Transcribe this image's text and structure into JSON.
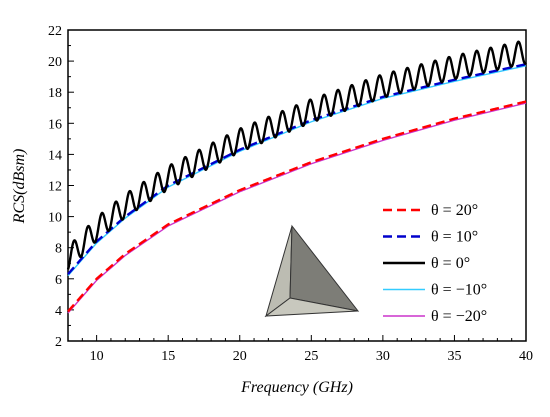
{
  "chart_data": {
    "type": "line",
    "xlabel": "Frequency (GHz)",
    "ylabel": "RCS(dBsm)",
    "xlim": [
      8,
      40
    ],
    "ylim": [
      2,
      22
    ],
    "xticks": [
      10,
      15,
      20,
      25,
      30,
      35,
      40
    ],
    "yticks": [
      2,
      4,
      6,
      8,
      10,
      12,
      14,
      16,
      18,
      20,
      22
    ],
    "legend_position": "right",
    "series": [
      {
        "name": "θ = 20°",
        "color": "#ff0000",
        "dash": "dashed",
        "x": [
          8,
          10,
          12,
          15,
          20,
          25,
          30,
          35,
          40
        ],
        "y": [
          3.9,
          6.0,
          7.6,
          9.5,
          11.7,
          13.5,
          15.0,
          16.3,
          17.4
        ]
      },
      {
        "name": "θ = 10°",
        "color": "#0000cc",
        "dash": "dashed",
        "x": [
          8,
          10,
          12,
          15,
          20,
          25,
          30,
          35,
          40
        ],
        "y": [
          6.3,
          8.4,
          10.0,
          12.0,
          14.3,
          16.2,
          17.7,
          18.8,
          19.8
        ]
      },
      {
        "name": "θ = 0°",
        "color": "#000000",
        "dash": "solid",
        "oscillating": true,
        "x": [
          8,
          10,
          12,
          15,
          20,
          25,
          30,
          35,
          40
        ],
        "y": [
          7.3,
          9.2,
          10.7,
          12.5,
          14.9,
          16.8,
          18.4,
          19.6,
          20.6
        ]
      },
      {
        "name": "θ = −10°",
        "color": "#33ccff",
        "dash": "solid",
        "x": [
          8,
          10,
          12,
          15,
          20,
          25,
          30,
          35,
          40
        ],
        "y": [
          6.2,
          8.3,
          9.9,
          11.9,
          14.2,
          16.1,
          17.6,
          18.7,
          19.7
        ]
      },
      {
        "name": "θ = −20°",
        "color": "#cc33cc",
        "dash": "solid",
        "x": [
          8,
          10,
          12,
          15,
          20,
          25,
          30,
          35,
          40
        ],
        "y": [
          3.8,
          5.9,
          7.5,
          9.4,
          11.6,
          13.4,
          14.9,
          16.2,
          17.3
        ]
      }
    ],
    "inset": "trihedral-corner-reflector"
  }
}
